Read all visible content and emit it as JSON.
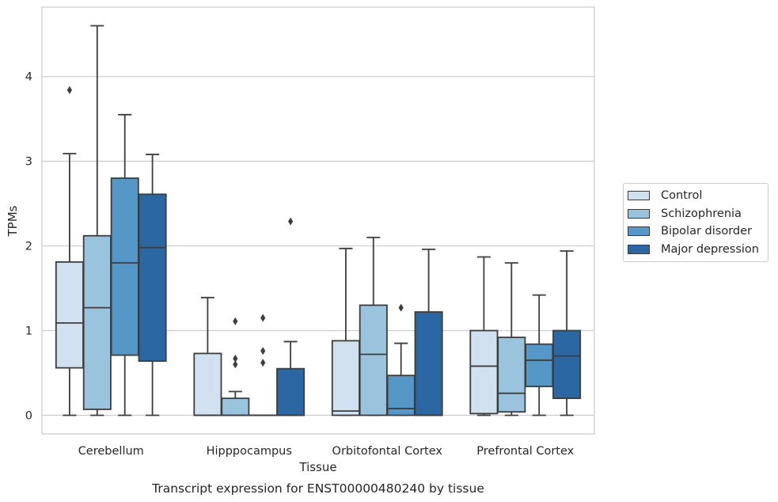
{
  "chart_data": {
    "type": "box",
    "title": "Transcript expression for ENST00000480240 by tissue",
    "xlabel": "Tissue",
    "ylabel": "TPMs",
    "ylim": [
      -0.22,
      4.82
    ],
    "yticks": [
      0,
      1,
      2,
      3,
      4
    ],
    "grid": "horizontal",
    "legend_position": "right",
    "categories": [
      "Cerebellum",
      "Hipppocampus",
      "Orbitofontal Cortex",
      "Prefrontal Cortex"
    ],
    "series": [
      {
        "name": "Control",
        "color": "#d1e1f0",
        "boxes": [
          {
            "whislo": 0.0,
            "q1": 0.56,
            "med": 1.09,
            "q3": 1.81,
            "whishi": 3.09,
            "fliers": [
              3.84
            ]
          },
          {
            "whislo": 0.0,
            "q1": 0.0,
            "med": 0.0,
            "q3": 0.73,
            "whishi": 1.39,
            "fliers": []
          },
          {
            "whislo": 0.0,
            "q1": 0.0,
            "med": 0.05,
            "q3": 0.88,
            "whishi": 1.97,
            "fliers": []
          },
          {
            "whislo": 0.0,
            "q1": 0.02,
            "med": 0.58,
            "q3": 1.0,
            "whishi": 1.87,
            "fliers": []
          }
        ]
      },
      {
        "name": "Schizophrenia",
        "color": "#9ac4dd",
        "boxes": [
          {
            "whislo": 0.0,
            "q1": 0.07,
            "med": 1.27,
            "q3": 2.12,
            "whishi": 4.6,
            "fliers": []
          },
          {
            "whislo": 0.0,
            "q1": 0.0,
            "med": 0.0,
            "q3": 0.2,
            "whishi": 0.28,
            "fliers": [
              0.6,
              0.67,
              1.11
            ]
          },
          {
            "whislo": 0.0,
            "q1": 0.0,
            "med": 0.72,
            "q3": 1.3,
            "whishi": 2.1,
            "fliers": []
          },
          {
            "whislo": 0.0,
            "q1": 0.04,
            "med": 0.26,
            "q3": 0.92,
            "whishi": 1.8,
            "fliers": []
          }
        ]
      },
      {
        "name": "Bipolar disorder",
        "color": "#5598c7",
        "boxes": [
          {
            "whislo": 0.0,
            "q1": 0.71,
            "med": 1.8,
            "q3": 2.8,
            "whishi": 3.55,
            "fliers": []
          },
          {
            "whislo": 0.0,
            "q1": 0.0,
            "med": 0.0,
            "q3": 0.0,
            "whishi": 0.0,
            "fliers": [
              0.62,
              0.76,
              1.15
            ]
          },
          {
            "whislo": 0.0,
            "q1": 0.0,
            "med": 0.08,
            "q3": 0.47,
            "whishi": 0.85,
            "fliers": [
              1.27
            ]
          },
          {
            "whislo": 0.0,
            "q1": 0.34,
            "med": 0.65,
            "q3": 0.84,
            "whishi": 1.42,
            "fliers": []
          }
        ]
      },
      {
        "name": "Major depression",
        "color": "#2a67a3",
        "boxes": [
          {
            "whislo": 0.0,
            "q1": 0.64,
            "med": 1.98,
            "q3": 2.61,
            "whishi": 3.08,
            "fliers": []
          },
          {
            "whislo": 0.0,
            "q1": 0.0,
            "med": 0.0,
            "q3": 0.55,
            "whishi": 0.87,
            "fliers": [
              2.29
            ]
          },
          {
            "whislo": 0.0,
            "q1": 0.0,
            "med": 0.0,
            "q3": 1.22,
            "whishi": 1.96,
            "fliers": []
          },
          {
            "whislo": 0.0,
            "q1": 0.2,
            "med": 0.7,
            "q3": 1.0,
            "whishi": 1.94,
            "fliers": []
          }
        ]
      }
    ]
  }
}
